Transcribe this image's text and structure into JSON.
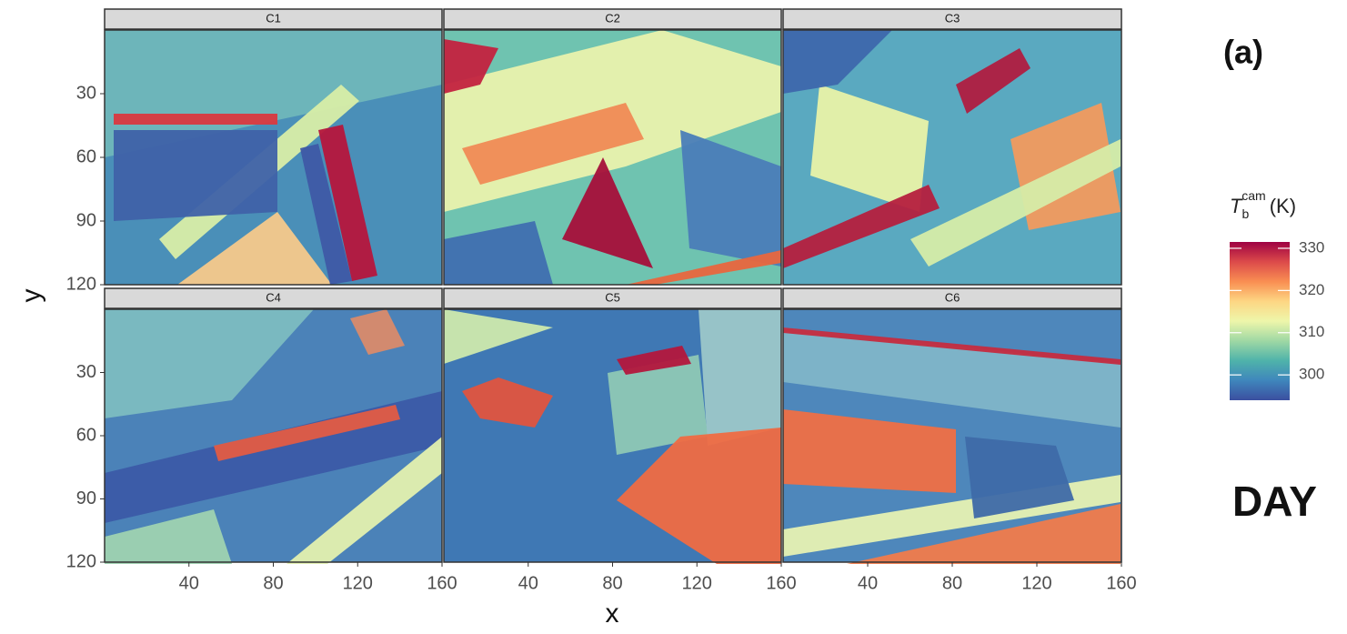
{
  "chart_data": {
    "type": "raster",
    "facets": [
      "C1",
      "C2",
      "C3",
      "C4",
      "C5",
      "C6"
    ],
    "x_label": "x",
    "y_label": "y",
    "xlim": [
      0,
      160
    ],
    "xticks": [
      40,
      80,
      120,
      160
    ],
    "ylim": [
      0,
      120
    ],
    "yticks": [
      30,
      60,
      90,
      120
    ],
    "colorbar": {
      "symbol": "T",
      "subscript": "b",
      "superscript": "cam",
      "unit": "(K)",
      "lim": [
        294,
        331.5
      ],
      "ticks": [
        300,
        310,
        320,
        330
      ],
      "colors": [
        "#3b4fa0",
        "#3f86bc",
        "#4fb3aa",
        "#9fd8a4",
        "#eef6aa",
        "#fdd683",
        "#f98e52",
        "#dc4a4a",
        "#9e0142"
      ]
    },
    "panel_label": "(a)",
    "annotation": "DAY"
  }
}
